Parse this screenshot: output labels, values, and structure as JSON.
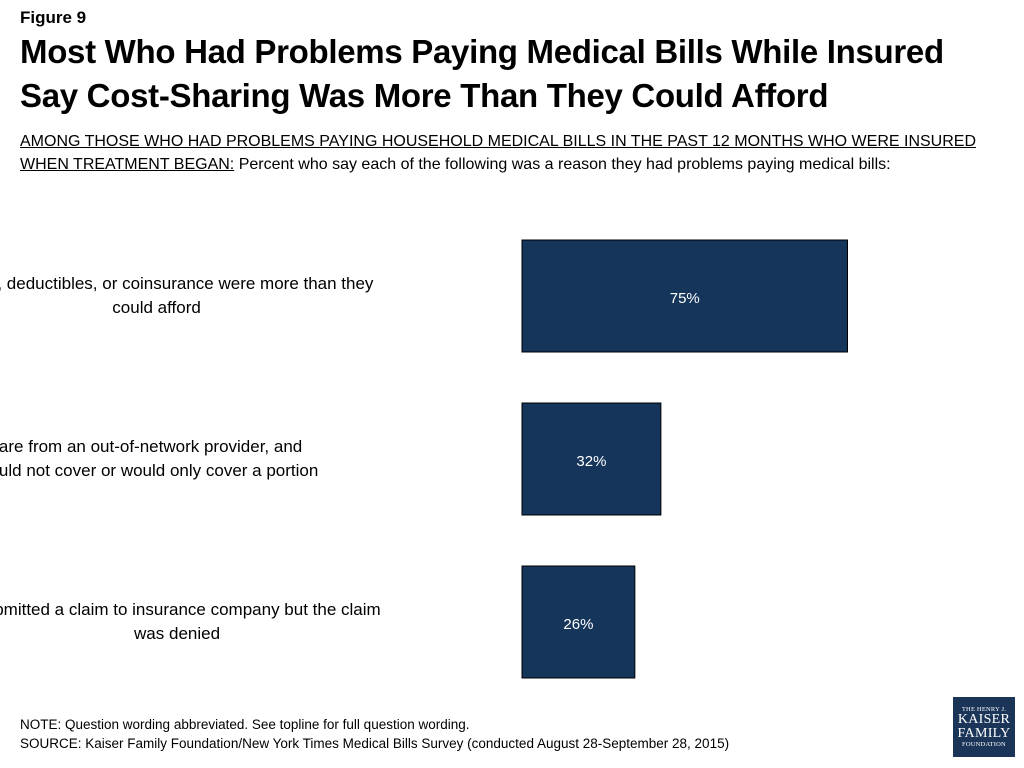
{
  "figure_label": "Figure 9",
  "title": "Most Who Had Problems Paying Medical Bills While Insured Say Cost-Sharing Was More Than They Could Afford",
  "subtitle": {
    "lead": "AMONG THOSE WHO HAD PROBLEMS PAYING HOUSEHOLD MEDICAL BILLS IN THE PAST 12 MONTHS WHO WERE INSURED WHEN TREATMENT BEGAN:",
    "text": " Percent who say each of the following was a reason they had problems paying medical bills:"
  },
  "chart_data": {
    "type": "bar",
    "orientation": "horizontal",
    "categories": [
      [
        "Copays, deductibles, or coinsurance were more than they",
        "could afford"
      ],
      [
        "Received care from an out-of-network provider, and",
        "insurance would not cover or would only cover a portion"
      ],
      [
        "Submitted a claim to insurance company but the claim",
        "was denied"
      ]
    ],
    "values": [
      75,
      32,
      26
    ],
    "data_labels": [
      "75%",
      "32%",
      "26%"
    ],
    "bar_color": "#15355b",
    "bar_edge_color": "#000000",
    "label_color": "#ffffff",
    "grid": false,
    "legend": "none"
  },
  "note": "NOTE: Question wording abbreviated.  See topline for full question wording.",
  "source": "SOURCE: Kaiser Family Foundation/New York Times Medical Bills Survey (conducted August 28-September 28, 2015)",
  "logo": {
    "line1": "THE HENRY J.",
    "line2": "KAISER",
    "line3": "FAMILY",
    "line4": "FOUNDATION",
    "color": "#1a3558"
  }
}
